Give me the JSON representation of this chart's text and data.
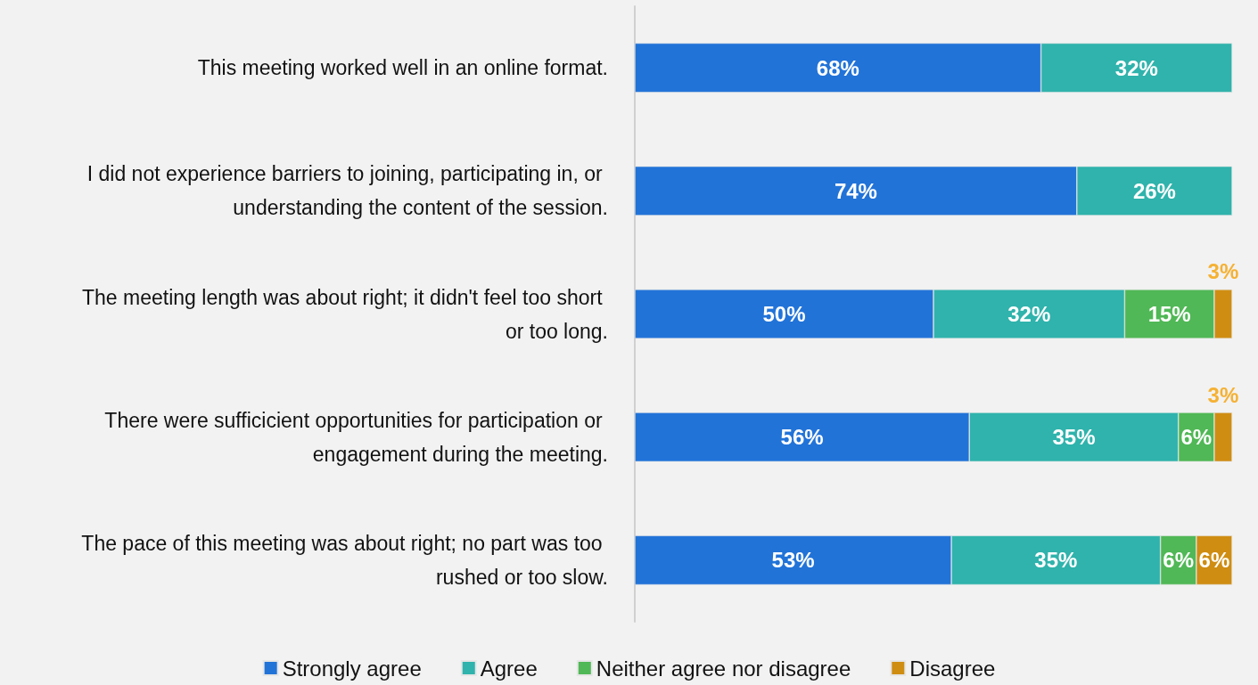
{
  "chart_data": {
    "type": "bar",
    "orientation": "horizontal",
    "stacked": true,
    "legend": "bottom",
    "grid": false,
    "tick_labels": "y",
    "categories": [
      "This meeting worked well in an online format.",
      "I did not experience barriers to joining, participating in, or understanding the content of the session.",
      "The meeting length was about right; it didn't feel too short or too long.",
      "There were sufficicient opportunities for participation or engagement during the meeting.",
      "The pace of this meeting was about right; no part was too rushed or too slow."
    ],
    "series": [
      {
        "name": "Strongly agree",
        "color": "#2173d8",
        "values": [
          68,
          74,
          50,
          56,
          53
        ],
        "value_labels": [
          "68%",
          "74%",
          "50%",
          "56%",
          "53%"
        ]
      },
      {
        "name": "Agree",
        "color": "#2fb3ac",
        "values": [
          32,
          26,
          32,
          35,
          35
        ],
        "value_labels": [
          "32%",
          "26%",
          "32%",
          "35%",
          "35%"
        ]
      },
      {
        "name": "Neither agree nor disagree",
        "color": "#50b856",
        "values": [
          null,
          null,
          15,
          6,
          6
        ],
        "value_labels": [
          null,
          null,
          "15%",
          "6%",
          "6%"
        ]
      },
      {
        "name": "Disagree",
        "color": "#cf8d12",
        "values": [
          null,
          null,
          3,
          3,
          6
        ],
        "value_labels": [
          null,
          null,
          "3%",
          "3%",
          "6%"
        ]
      }
    ]
  }
}
